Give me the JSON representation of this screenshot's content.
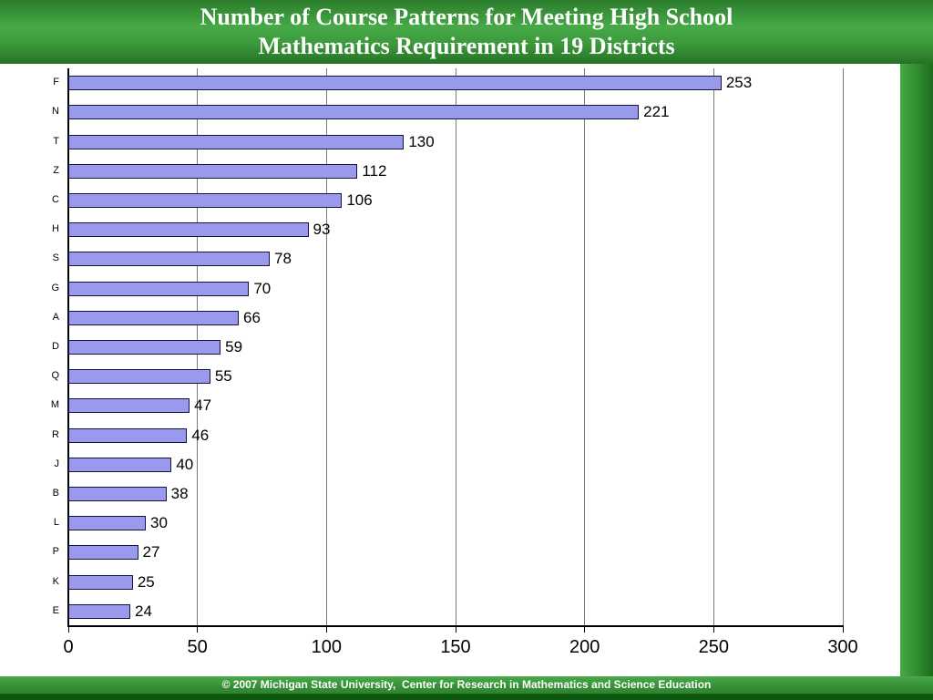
{
  "slide": {
    "title_line1": "Number of Course Patterns for Meeting High School",
    "title_line2": "Mathematics Requirement in 19 Districts",
    "footer": "© 2007 Michigan State University,  Center for Research in Mathematics and Science Education"
  },
  "colors": {
    "header_green_light": "#46a946",
    "header_green_dark": "#1d6b1d",
    "footer_green_dark": "#0e570e",
    "bar_fill": "#9999ee",
    "bar_border": "#14143c",
    "gridline": "#7a7a7a",
    "axis": "#000000",
    "text": "#000000"
  },
  "chart_data": {
    "type": "bar",
    "orientation": "horizontal",
    "title": "Number of Course Patterns for Meeting High School Mathematics Requirement in 19 Districts",
    "categories": [
      "F",
      "N",
      "T",
      "Z",
      "C",
      "H",
      "S",
      "G",
      "A",
      "D",
      "Q",
      "M",
      "R",
      "J",
      "B",
      "L",
      "P",
      "K",
      "E"
    ],
    "values": [
      253,
      221,
      130,
      112,
      106,
      93,
      78,
      70,
      66,
      59,
      55,
      47,
      46,
      40,
      38,
      30,
      27,
      25,
      24
    ],
    "xlabel": "",
    "ylabel": "",
    "xlim": [
      0,
      300
    ],
    "xticks": [
      0,
      50,
      100,
      150,
      200,
      250,
      300
    ],
    "grid": true,
    "value_labels": true,
    "legend": "none",
    "bar_color": "#9999ee",
    "bar_border_color": "#14143c"
  }
}
